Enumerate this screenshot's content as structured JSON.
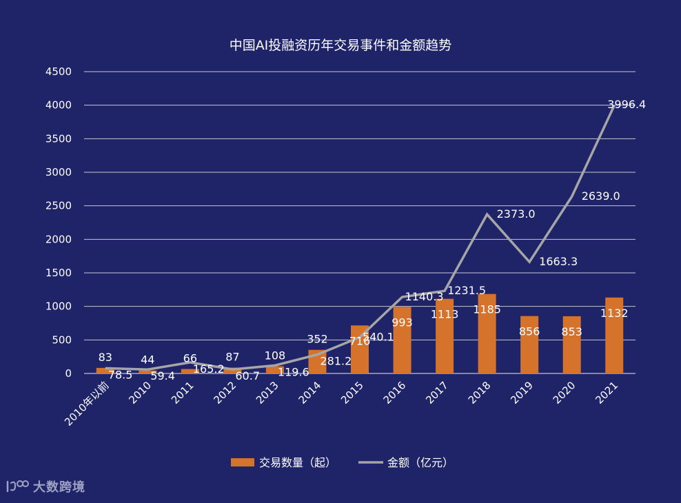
{
  "colors": {
    "background": "#1f2468",
    "bar": "#d5732d",
    "line": "#a6a6a6",
    "grid": "#ffffff",
    "text": "#ffffff"
  },
  "chart_data": {
    "type": "bar",
    "title": "中国AI投融资历年交易事件和金额趋势",
    "categories": [
      "2010年以前",
      "2010",
      "2011",
      "2012",
      "2013",
      "2014",
      "2015",
      "2016",
      "2017",
      "2018",
      "2019",
      "2020",
      "2021"
    ],
    "series": [
      {
        "name": "交易数量（起）",
        "type": "bar",
        "color": "#d5732d",
        "values": [
          83,
          44,
          66,
          87,
          108,
          352,
          716,
          993,
          1113,
          1185,
          856,
          853,
          1132
        ],
        "labels": [
          "83",
          "44",
          "66",
          "87",
          "108",
          "352",
          "716",
          "993",
          "1113",
          "1185",
          "856",
          "853",
          "1132"
        ]
      },
      {
        "name": "金额（亿元）",
        "type": "line",
        "color": "#a6a6a6",
        "values": [
          78.5,
          59.4,
          165.2,
          60.7,
          119.6,
          281.2,
          540.1,
          1140.3,
          1231.5,
          2373.0,
          1663.3,
          2639.0,
          3996.4
        ],
        "labels": [
          "78.5",
          "59.4",
          "165.2",
          "60.7",
          "119.6",
          "281.2",
          "540.1",
          "1140.3",
          "1231.5",
          "2373.0",
          "1663.3",
          "2639.0",
          "3996.4"
        ]
      }
    ],
    "ylim": [
      0,
      4500
    ],
    "yticks": [
      "0",
      "500",
      "1000",
      "1500",
      "2000",
      "2500",
      "3000",
      "3500",
      "4000",
      "4500"
    ],
    "ytick_values": [
      0,
      500,
      1000,
      1500,
      2000,
      2500,
      3000,
      3500,
      4000,
      4500
    ],
    "grid": true,
    "legend_position": "bottom"
  },
  "watermark": {
    "text": "大数跨境",
    "icon": "logo-icon"
  }
}
